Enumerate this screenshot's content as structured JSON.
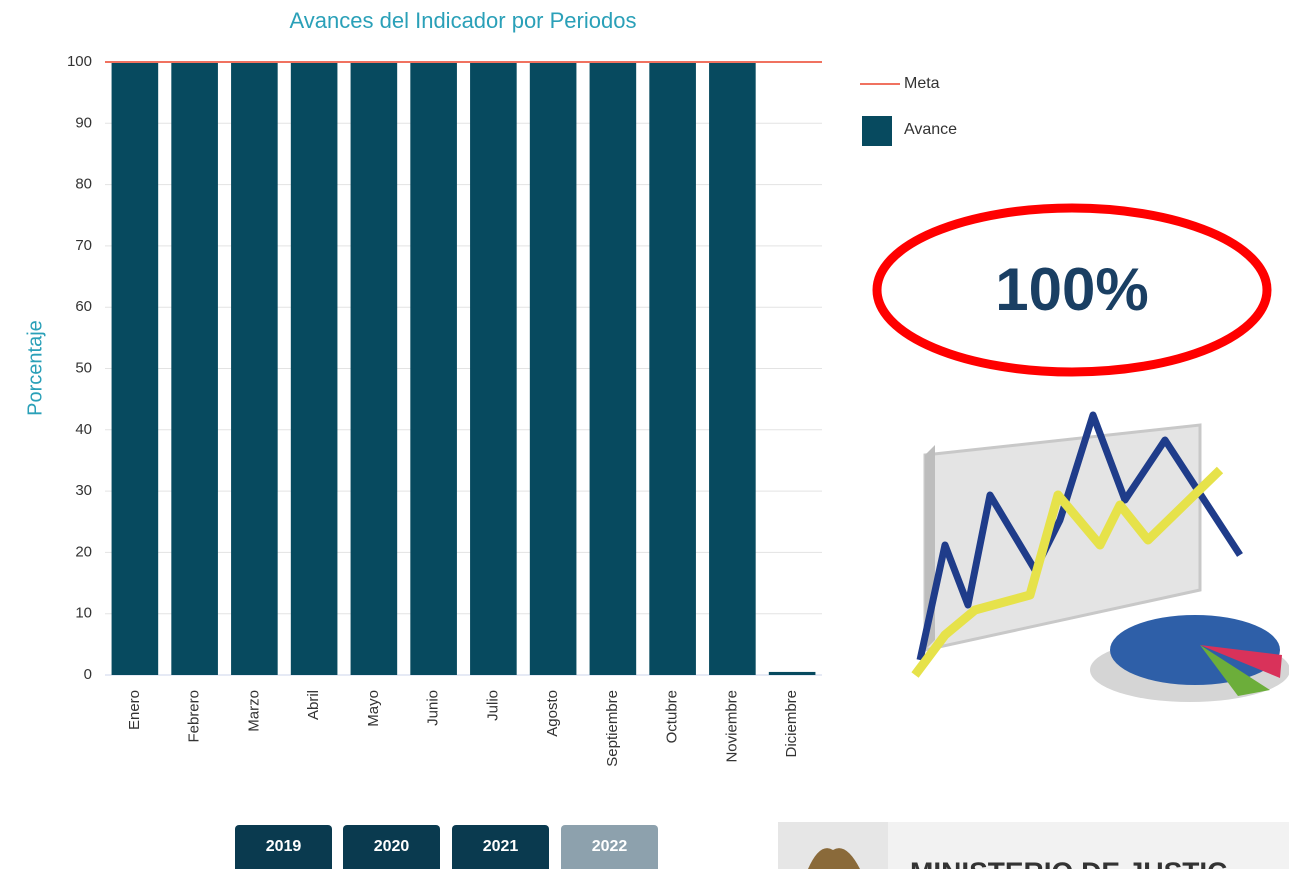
{
  "chart_data": {
    "type": "bar",
    "title": "Avances del Indicador por Periodos",
    "y_label": "Porcentaje",
    "categories": [
      "Enero",
      "Febrero",
      "Marzo",
      "Abril",
      "Mayo",
      "Junio",
      "Julio",
      "Agosto",
      "Septiembre",
      "Octubre",
      "Noviembre",
      "Diciembre"
    ],
    "series": [
      {
        "name": "Avance",
        "color": "#074a5f",
        "values": [
          100,
          100,
          100,
          100,
          100,
          100,
          100,
          100,
          100,
          100,
          100,
          0.5
        ]
      }
    ],
    "meta": {
      "name": "Meta",
      "value": 100,
      "color": "#f07260"
    },
    "ylim": [
      0,
      100
    ],
    "yticks": [
      0,
      10,
      20,
      30,
      40,
      50,
      60,
      70,
      80,
      90,
      100
    ],
    "grid": true
  },
  "annotation": "100%",
  "year_buttons": {
    "labels": [
      "2019",
      "2020",
      "2021",
      "2022"
    ],
    "selected": 3
  },
  "footer": {
    "text": "MINISTERIO DE JUSTIC"
  }
}
